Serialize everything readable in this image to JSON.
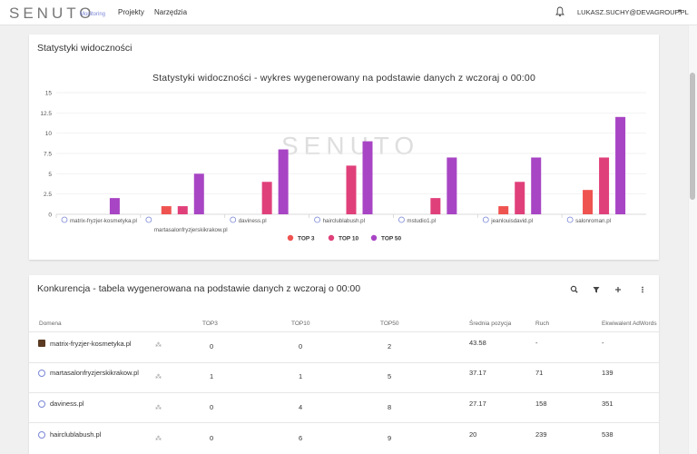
{
  "header": {
    "logo": "SENUTO",
    "logo_sub": "Monitoring",
    "nav": [
      "Projekty",
      "Narzędzia"
    ],
    "user": "LUKASZ.SUCHY@DEVAGROUP.PL"
  },
  "visibility_card": {
    "title": "Statystyki widoczności",
    "chart_title": "Statystyki widoczności - wykres wygenerowany na podstawie danych z wczoraj o 00:00",
    "watermark": "SENUTO"
  },
  "chart_data": {
    "type": "bar",
    "categories": [
      "matrix-fryzjer-kosmetyka.pl",
      "martasalonfryzjerskikrakow.pl",
      "daviness.pl",
      "hairclublabush.pl",
      "mstudio1.pl",
      "jeanlouisdavid.pl",
      "salonroman.pl"
    ],
    "series": [
      {
        "name": "TOP 3",
        "color": "#ef5350",
        "values": [
          0,
          1,
          0,
          0,
          0,
          1,
          3
        ]
      },
      {
        "name": "TOP 10",
        "color": "#e0407a",
        "values": [
          0,
          1,
          4,
          6,
          2,
          4,
          7
        ]
      },
      {
        "name": "TOP 50",
        "color": "#a845c4",
        "values": [
          2,
          5,
          8,
          9,
          7,
          7,
          12
        ]
      }
    ],
    "ylim": [
      0,
      15
    ],
    "yticks": [
      "0",
      "2.5",
      "5",
      "7.5",
      "10",
      "12.5",
      "15"
    ],
    "legend_position": "bottom"
  },
  "competition_card": {
    "title": "Konkurencja - tabela wygenerowana na podstawie danych z wczoraj o 00:00",
    "columns": [
      "Domena",
      "TOP3",
      "TOP10",
      "TOP50",
      "Średnia pozycja",
      "Ruch",
      "Ekwiwalent AdWords"
    ],
    "rows": [
      {
        "domain": "matrix-fryzjer-kosmetyka.pl",
        "top3": "0",
        "top10": "0",
        "top50": "2",
        "avg": "43.58",
        "traffic": "-",
        "adwords": "-"
      },
      {
        "domain": "martasalonfryzjerskikrakow.pl",
        "top3": "1",
        "top10": "1",
        "top50": "5",
        "avg": "37.17",
        "traffic": "71",
        "adwords": "139"
      },
      {
        "domain": "daviness.pl",
        "top3": "0",
        "top10": "4",
        "top50": "8",
        "avg": "27.17",
        "traffic": "158",
        "adwords": "351"
      },
      {
        "domain": "hairclublabush.pl",
        "top3": "0",
        "top10": "6",
        "top50": "9",
        "avg": "20",
        "traffic": "239",
        "adwords": "538"
      }
    ]
  }
}
